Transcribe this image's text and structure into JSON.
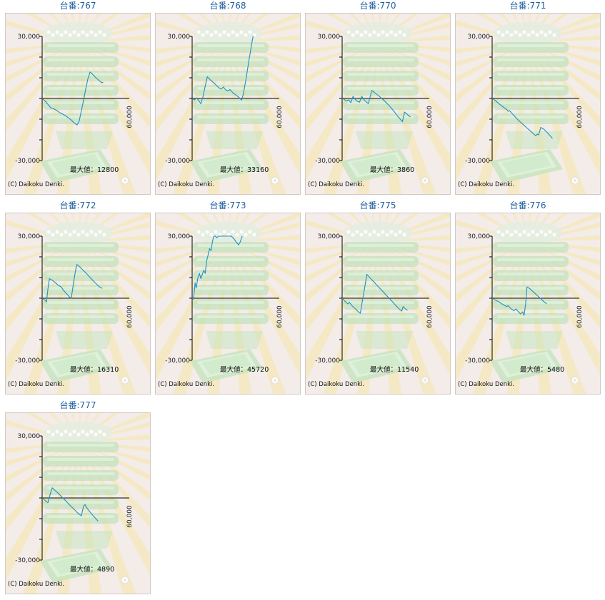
{
  "shared": {
    "ytick_top": "30,000",
    "ytick_bottom": "-30,000",
    "xtick_right": "60,000",
    "max_prefix": "最大値：",
    "copyright": "(C) Daikoku Denki.",
    "ylim": [
      -30000,
      30000
    ],
    "xlim": [
      0,
      60000
    ],
    "ygrid_step": 10000,
    "line_color": "#1e90c8"
  },
  "chart_data": [
    {
      "type": "line",
      "title": "台番:767",
      "max": "12800",
      "ylim": [
        -30000,
        30000
      ],
      "xlim": [
        0,
        60000
      ],
      "points": [
        [
          0,
          0
        ],
        [
          2500,
          -1500
        ],
        [
          4500,
          -3300
        ],
        [
          6000,
          -4500
        ],
        [
          8000,
          -5000
        ],
        [
          10000,
          -5800
        ],
        [
          12000,
          -6800
        ],
        [
          14000,
          -7500
        ],
        [
          16000,
          -8300
        ],
        [
          18000,
          -9300
        ],
        [
          20000,
          -10400
        ],
        [
          22000,
          -11800
        ],
        [
          24000,
          -12800
        ],
        [
          25500,
          -11000
        ],
        [
          27000,
          -6000
        ],
        [
          28500,
          -1000
        ],
        [
          30000,
          4500
        ],
        [
          31500,
          9500
        ],
        [
          33000,
          12800
        ],
        [
          35000,
          11500
        ],
        [
          37000,
          10000
        ],
        [
          39000,
          8800
        ],
        [
          41000,
          7600
        ],
        [
          42000,
          7900
        ]
      ]
    },
    {
      "type": "line",
      "title": "台番:768",
      "max": "33160",
      "ylim": [
        -30000,
        30000
      ],
      "xlim": [
        0,
        60000
      ],
      "points": [
        [
          0,
          0
        ],
        [
          1500,
          -800
        ],
        [
          3000,
          300
        ],
        [
          4500,
          -1000
        ],
        [
          6000,
          -2500
        ],
        [
          7500,
          1000
        ],
        [
          9000,
          6000
        ],
        [
          10500,
          10500
        ],
        [
          12500,
          9000
        ],
        [
          14500,
          7800
        ],
        [
          16500,
          6400
        ],
        [
          18500,
          5100
        ],
        [
          20000,
          4500
        ],
        [
          21500,
          5500
        ],
        [
          23000,
          4200
        ],
        [
          24500,
          3600
        ],
        [
          26000,
          4300
        ],
        [
          28000,
          2800
        ],
        [
          30000,
          1700
        ],
        [
          32000,
          700
        ],
        [
          34000,
          -800
        ],
        [
          35000,
          1500
        ],
        [
          36000,
          5000
        ],
        [
          37000,
          9000
        ],
        [
          38000,
          13500
        ],
        [
          39000,
          18000
        ],
        [
          40000,
          22000
        ],
        [
          41000,
          26500
        ],
        [
          42000,
          30200
        ]
      ]
    },
    {
      "type": "line",
      "title": "台番:770",
      "max": "3860",
      "ylim": [
        -30000,
        30000
      ],
      "xlim": [
        0,
        60000
      ],
      "points": [
        [
          0,
          0
        ],
        [
          1500,
          -500
        ],
        [
          3000,
          -1200
        ],
        [
          4500,
          -700
        ],
        [
          6000,
          -2000
        ],
        [
          7500,
          1000
        ],
        [
          9000,
          -500
        ],
        [
          10500,
          -1400
        ],
        [
          12000,
          -1800
        ],
        [
          13500,
          1000
        ],
        [
          15000,
          -600
        ],
        [
          16500,
          -1600
        ],
        [
          18000,
          -2500
        ],
        [
          19500,
          1500
        ],
        [
          20500,
          3860
        ],
        [
          22000,
          3000
        ],
        [
          24000,
          1900
        ],
        [
          26000,
          800
        ],
        [
          28000,
          -400
        ],
        [
          30000,
          -1800
        ],
        [
          32000,
          -3200
        ],
        [
          34000,
          -4800
        ],
        [
          36000,
          -6500
        ],
        [
          38000,
          -8400
        ],
        [
          40000,
          -10000
        ],
        [
          41500,
          -11200
        ],
        [
          43000,
          -6600
        ],
        [
          45000,
          -7800
        ],
        [
          47000,
          -9000
        ]
      ]
    },
    {
      "type": "line",
      "title": "台番:771",
      "max": "",
      "ylim": [
        -30000,
        30000
      ],
      "xlim": [
        0,
        60000
      ],
      "points": [
        [
          0,
          0
        ],
        [
          2000,
          -900
        ],
        [
          4000,
          -2100
        ],
        [
          6000,
          -3300
        ],
        [
          8000,
          -4300
        ],
        [
          10000,
          -5300
        ],
        [
          11000,
          -6200
        ],
        [
          12000,
          -5900
        ],
        [
          14000,
          -7500
        ],
        [
          16000,
          -9000
        ],
        [
          18000,
          -10500
        ],
        [
          20000,
          -11800
        ],
        [
          22000,
          -13000
        ],
        [
          24000,
          -14300
        ],
        [
          26000,
          -15500
        ],
        [
          28000,
          -16800
        ],
        [
          30000,
          -18000
        ],
        [
          31000,
          -17300
        ],
        [
          32000,
          -17600
        ],
        [
          33500,
          -14000
        ],
        [
          35500,
          -14800
        ],
        [
          37500,
          -16200
        ],
        [
          39500,
          -17700
        ],
        [
          41500,
          -19300
        ]
      ]
    },
    {
      "type": "line",
      "title": "台番:772",
      "max": "16310",
      "ylim": [
        -30000,
        30000
      ],
      "xlim": [
        0,
        60000
      ],
      "points": [
        [
          0,
          0
        ],
        [
          2000,
          -1000
        ],
        [
          3000,
          -1800
        ],
        [
          4000,
          4500
        ],
        [
          5000,
          9500
        ],
        [
          7000,
          8700
        ],
        [
          9000,
          7600
        ],
        [
          11000,
          6300
        ],
        [
          13000,
          5500
        ],
        [
          15000,
          3600
        ],
        [
          17000,
          2000
        ],
        [
          19000,
          500
        ],
        [
          20000,
          0
        ],
        [
          21000,
          4500
        ],
        [
          22000,
          9000
        ],
        [
          23000,
          13500
        ],
        [
          24000,
          16310
        ],
        [
          26000,
          15100
        ],
        [
          28000,
          13700
        ],
        [
          30000,
          12300
        ],
        [
          32000,
          10800
        ],
        [
          34000,
          9300
        ],
        [
          36000,
          7800
        ],
        [
          38000,
          6400
        ],
        [
          40000,
          5200
        ],
        [
          41500,
          4800
        ]
      ]
    },
    {
      "type": "line",
      "title": "台番:773",
      "max": "45720",
      "ylim": [
        -30000,
        30000
      ],
      "xlim": [
        0,
        60000
      ],
      "points": [
        [
          0,
          0
        ],
        [
          1000,
          -500
        ],
        [
          2000,
          7500
        ],
        [
          2800,
          5000
        ],
        [
          4000,
          10000
        ],
        [
          5000,
          12000
        ],
        [
          6000,
          9500
        ],
        [
          7000,
          11500
        ],
        [
          8000,
          13500
        ],
        [
          9000,
          12000
        ],
        [
          10000,
          18000
        ],
        [
          11000,
          21000
        ],
        [
          12000,
          24000
        ],
        [
          13000,
          23000
        ],
        [
          14000,
          27500
        ],
        [
          15000,
          30000
        ],
        [
          16000,
          30000
        ],
        [
          17000,
          29200
        ],
        [
          18000,
          30000
        ],
        [
          19000,
          30000
        ],
        [
          20000,
          30000
        ],
        [
          21000,
          30000
        ],
        [
          22000,
          30000
        ],
        [
          23500,
          30000
        ],
        [
          25000,
          30000
        ],
        [
          27000,
          30000
        ],
        [
          29000,
          28500
        ],
        [
          30500,
          27000
        ],
        [
          32000,
          25800
        ],
        [
          32500,
          26500
        ],
        [
          33000,
          27000
        ],
        [
          33500,
          28000
        ],
        [
          34000,
          29000
        ],
        [
          34500,
          30000
        ]
      ]
    },
    {
      "type": "line",
      "title": "台番:775",
      "max": "11540",
      "ylim": [
        -30000,
        30000
      ],
      "xlim": [
        0,
        60000
      ],
      "points": [
        [
          0,
          0
        ],
        [
          2000,
          -1500
        ],
        [
          4000,
          -2800
        ],
        [
          5000,
          -2000
        ],
        [
          7000,
          -3800
        ],
        [
          9000,
          -5000
        ],
        [
          11000,
          -6500
        ],
        [
          12500,
          -7300
        ],
        [
          14000,
          -1000
        ],
        [
          15500,
          5000
        ],
        [
          17000,
          11540
        ],
        [
          19000,
          10000
        ],
        [
          21000,
          8500
        ],
        [
          23000,
          7000
        ],
        [
          25000,
          5500
        ],
        [
          27000,
          4000
        ],
        [
          29000,
          2500
        ],
        [
          31000,
          1000
        ],
        [
          33000,
          -500
        ],
        [
          35000,
          -2000
        ],
        [
          37000,
          -3500
        ],
        [
          39000,
          -5000
        ],
        [
          41000,
          -6200
        ],
        [
          42000,
          -4000
        ],
        [
          43000,
          -4800
        ],
        [
          45000,
          -5900
        ]
      ]
    },
    {
      "type": "line",
      "title": "台番:776",
      "max": "5480",
      "ylim": [
        -30000,
        30000
      ],
      "xlim": [
        0,
        60000
      ],
      "points": [
        [
          0,
          0
        ],
        [
          2000,
          -800
        ],
        [
          4000,
          -1500
        ],
        [
          6000,
          -2400
        ],
        [
          8000,
          -3300
        ],
        [
          10000,
          -4000
        ],
        [
          11000,
          -3600
        ],
        [
          13000,
          -5100
        ],
        [
          15000,
          -6000
        ],
        [
          16500,
          -5200
        ],
        [
          18000,
          -6500
        ],
        [
          19500,
          -7600
        ],
        [
          21000,
          -6600
        ],
        [
          22000,
          -8300
        ],
        [
          23000,
          -3000
        ],
        [
          24000,
          5480
        ],
        [
          26000,
          4600
        ],
        [
          28000,
          3300
        ],
        [
          30000,
          2000
        ],
        [
          32000,
          700
        ],
        [
          34000,
          -600
        ],
        [
          36000,
          -1900
        ],
        [
          37500,
          -2700
        ]
      ]
    },
    {
      "type": "line",
      "title": "台番:777",
      "max": "4890",
      "ylim": [
        -30000,
        30000
      ],
      "xlim": [
        0,
        60000
      ],
      "points": [
        [
          0,
          0
        ],
        [
          2000,
          -1200
        ],
        [
          4000,
          -2300
        ],
        [
          6000,
          3000
        ],
        [
          7000,
          4890
        ],
        [
          9000,
          3600
        ],
        [
          11000,
          2300
        ],
        [
          13000,
          900
        ],
        [
          15000,
          -500
        ],
        [
          17000,
          -2000
        ],
        [
          19000,
          -3400
        ],
        [
          21000,
          -4800
        ],
        [
          23000,
          -6200
        ],
        [
          25000,
          -7600
        ],
        [
          27000,
          -8600
        ],
        [
          28500,
          -4000
        ],
        [
          29500,
          -3200
        ],
        [
          31000,
          -5000
        ],
        [
          33000,
          -6800
        ],
        [
          35000,
          -8500
        ],
        [
          37000,
          -10000
        ],
        [
          38500,
          -11200
        ]
      ]
    }
  ]
}
